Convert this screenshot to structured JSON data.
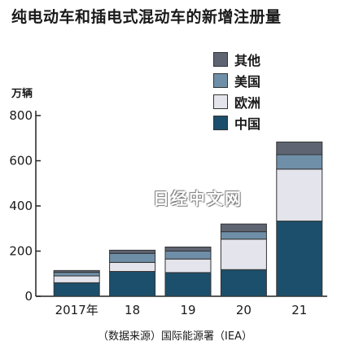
{
  "chart_data": {
    "type": "bar",
    "stacked": true,
    "title": "纯电动车和插电式混动车的新增注册量",
    "ylabel": "万辆",
    "categories": [
      "2017年",
      "18",
      "19",
      "20",
      "21"
    ],
    "ylim": [
      0,
      800
    ],
    "yticks": [
      0,
      200,
      400,
      600,
      800
    ],
    "series": [
      {
        "name": "中国",
        "color": "#1c4f6b",
        "values": [
          60,
          110,
          105,
          118,
          333
        ]
      },
      {
        "name": "欧洲",
        "color": "#e4e4ec",
        "values": [
          30,
          40,
          60,
          135,
          230
        ]
      },
      {
        "name": "美国",
        "color": "#6f8fa8",
        "values": [
          16,
          40,
          35,
          33,
          64
        ]
      },
      {
        "name": "其他",
        "color": "#5e6472",
        "values": [
          8,
          14,
          18,
          34,
          56
        ]
      }
    ],
    "legend_order": [
      "其他",
      "美国",
      "欧洲",
      "中国"
    ],
    "legend_position": "top-right",
    "grid": false
  },
  "source": "（数据来源）国际能源署（IEA）",
  "watermark": "日经中文网"
}
